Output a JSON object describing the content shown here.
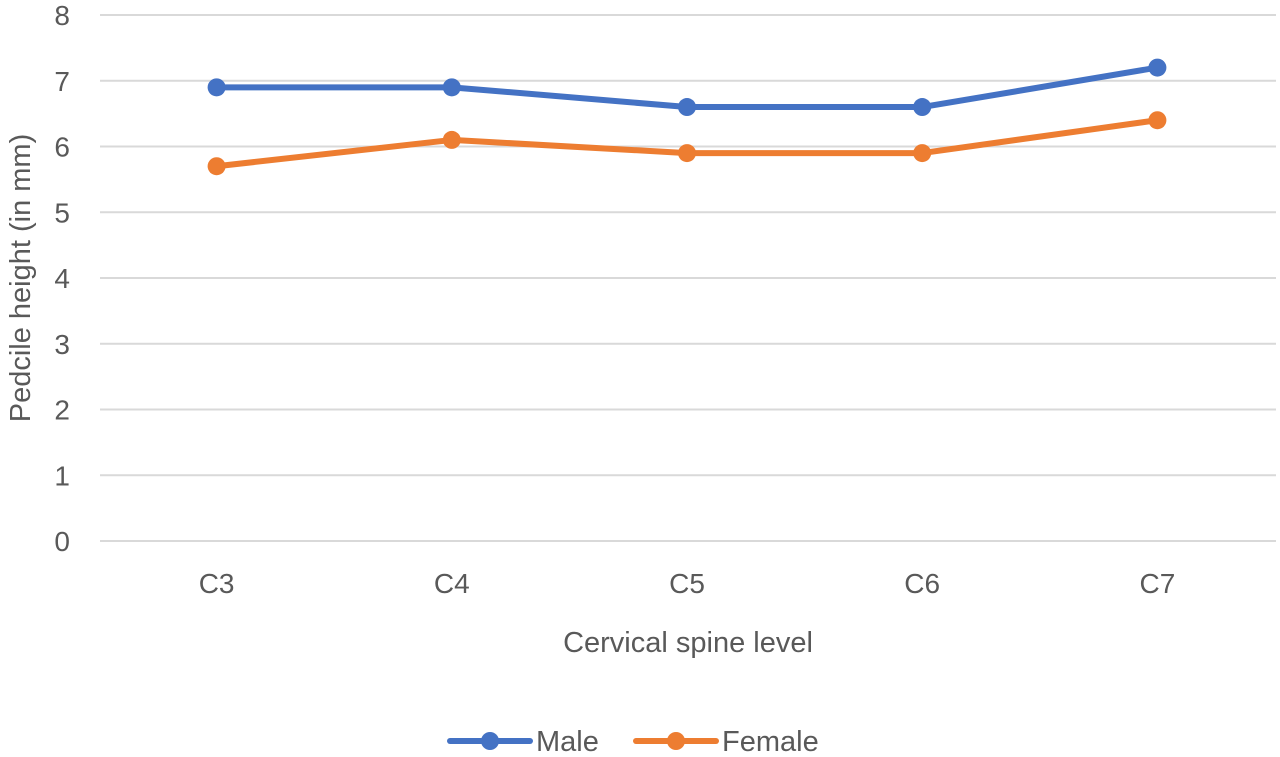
{
  "chart_data": {
    "type": "line",
    "title": "",
    "xlabel": "Cervical spine level",
    "ylabel": "Pedcile height (in mm)",
    "categories": [
      "C3",
      "C4",
      "C5",
      "C6",
      "C7"
    ],
    "ylim": [
      0,
      8
    ],
    "yticks": [
      0,
      1,
      2,
      3,
      4,
      5,
      6,
      7,
      8
    ],
    "grid": true,
    "legend_position": "bottom",
    "series": [
      {
        "name": "Male",
        "color": "#4472C4",
        "values": [
          6.9,
          6.9,
          6.6,
          6.6,
          7.2
        ]
      },
      {
        "name": "Female",
        "color": "#ED7D31",
        "values": [
          5.7,
          6.1,
          5.9,
          5.9,
          6.4
        ]
      }
    ]
  }
}
